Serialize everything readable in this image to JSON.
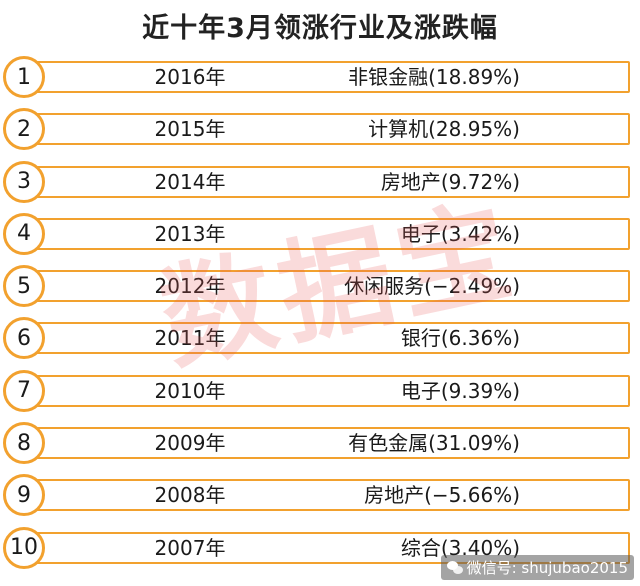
{
  "title": "近十年3月领涨行业及涨跌幅",
  "rows": [
    {
      "rank": "1",
      "year": "2016年",
      "industry": "非银金融(18.89%)"
    },
    {
      "rank": "2",
      "year": "2015年",
      "industry": "计算机(28.95%)"
    },
    {
      "rank": "3",
      "year": "2014年",
      "industry": "房地产(9.72%)"
    },
    {
      "rank": "4",
      "year": "2013年",
      "industry": "电子(3.42%)"
    },
    {
      "rank": "5",
      "year": "2012年",
      "industry": "休闲服务(−2.49%)"
    },
    {
      "rank": "6",
      "year": "2011年",
      "industry": "银行(6.36%)"
    },
    {
      "rank": "7",
      "year": "2010年",
      "industry": "电子(9.39%)"
    },
    {
      "rank": "8",
      "year": "2009年",
      "industry": "有色金属(31.09%)"
    },
    {
      "rank": "9",
      "year": "2008年",
      "industry": "房地产(−5.66%)"
    },
    {
      "rank": "10",
      "year": "2007年",
      "industry": "综合(3.40%)"
    }
  ],
  "watermark": "数据宝",
  "footer": {
    "icon": "wechat-icon",
    "text": "微信号: shujubao2015"
  },
  "colors": {
    "accent": "#f2a12e",
    "watermark": "#e65a5a"
  }
}
